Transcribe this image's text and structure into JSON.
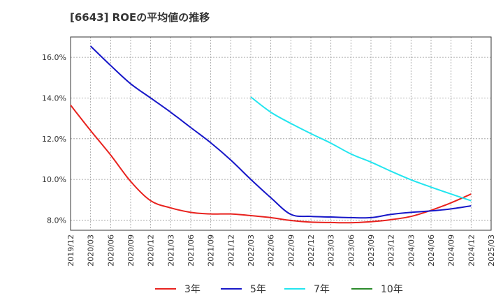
{
  "chart_data": {
    "type": "line",
    "title": "[6643]  ROEの平均値の推移",
    "xlabel": "",
    "ylabel": "",
    "ylim": [
      7.5,
      17.0
    ],
    "yticks": [
      8.0,
      10.0,
      12.0,
      14.0,
      16.0
    ],
    "ytick_labels": [
      "8.0%",
      "10.0%",
      "12.0%",
      "14.0%",
      "16.0%"
    ],
    "categories": [
      "2019/12",
      "2020/03",
      "2020/06",
      "2020/09",
      "2020/12",
      "2021/03",
      "2021/06",
      "2021/09",
      "2021/12",
      "2022/03",
      "2022/06",
      "2022/09",
      "2022/12",
      "2023/03",
      "2023/06",
      "2023/09",
      "2023/12",
      "2024/03",
      "2024/06",
      "2024/09",
      "2024/12",
      "2025/03"
    ],
    "grid": true,
    "legend_position": "bottom",
    "series": [
      {
        "name": "3年",
        "color": "#e8221e",
        "values": [
          13.65,
          12.4,
          11.2,
          9.9,
          8.95,
          8.6,
          8.38,
          8.3,
          8.3,
          8.22,
          8.12,
          7.98,
          7.9,
          7.88,
          7.87,
          7.92,
          8.02,
          8.18,
          8.48,
          8.85,
          9.28,
          null
        ]
      },
      {
        "name": "5年",
        "color": "#1717c8",
        "values": [
          null,
          16.55,
          15.6,
          14.7,
          14.0,
          13.3,
          12.55,
          11.8,
          10.95,
          10.0,
          9.1,
          8.28,
          8.18,
          8.15,
          8.12,
          8.12,
          8.28,
          8.38,
          8.45,
          8.55,
          8.7,
          null
        ]
      },
      {
        "name": "7年",
        "color": "#22e5ef",
        "values": [
          null,
          null,
          null,
          null,
          null,
          null,
          null,
          null,
          null,
          14.05,
          13.3,
          12.75,
          12.25,
          11.78,
          11.25,
          10.85,
          10.4,
          9.98,
          9.62,
          9.28,
          8.95,
          null
        ]
      },
      {
        "name": "10年",
        "color": "#2a8a2a",
        "values": [
          null,
          null,
          null,
          null,
          null,
          null,
          null,
          null,
          null,
          null,
          null,
          null,
          null,
          null,
          null,
          null,
          null,
          null,
          null,
          null,
          null,
          null
        ]
      }
    ]
  }
}
